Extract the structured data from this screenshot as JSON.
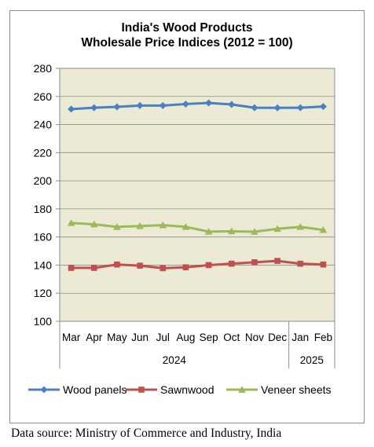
{
  "chart_data": {
    "type": "line",
    "title": [
      "India's Wood Products",
      "Wholesale Price Indices (2012 = 100)"
    ],
    "categories": [
      "Mar",
      "Apr",
      "May",
      "Jun",
      "Jul",
      "Aug",
      "Sep",
      "Oct",
      "Nov",
      "Dec",
      "Jan",
      "Feb"
    ],
    "year_groups": [
      {
        "label": "2024",
        "start": 0,
        "end": 9
      },
      {
        "label": "2025",
        "start": 10,
        "end": 11
      }
    ],
    "ylim": [
      100,
      280
    ],
    "yticks": [
      100,
      120,
      140,
      160,
      180,
      200,
      220,
      240,
      260,
      280
    ],
    "grid": true,
    "plot_background": "#ece9d5",
    "legend_position": "bottom",
    "series": [
      {
        "name": "Wood panels",
        "color": "#4a7fc1",
        "marker": "diamond",
        "values": [
          251.0,
          252.0,
          252.6,
          253.5,
          253.5,
          254.6,
          255.4,
          254.3,
          252.0,
          251.9,
          252.0,
          252.8
        ]
      },
      {
        "name": "Sawnwood",
        "color": "#c0504d",
        "marker": "square",
        "values": [
          138.0,
          138.0,
          140.4,
          139.6,
          137.8,
          138.4,
          140.0,
          141.0,
          142.0,
          143.0,
          141.0,
          140.4
        ]
      },
      {
        "name": "Veneer sheets",
        "color": "#9bbb59",
        "marker": "triangle",
        "values": [
          170.0,
          169.0,
          167.2,
          167.8,
          168.4,
          167.2,
          163.8,
          164.1,
          163.7,
          165.8,
          167.2,
          165.0
        ]
      }
    ]
  },
  "footer": {
    "source": "Data source: Ministry of Commerce and Industry, India"
  }
}
